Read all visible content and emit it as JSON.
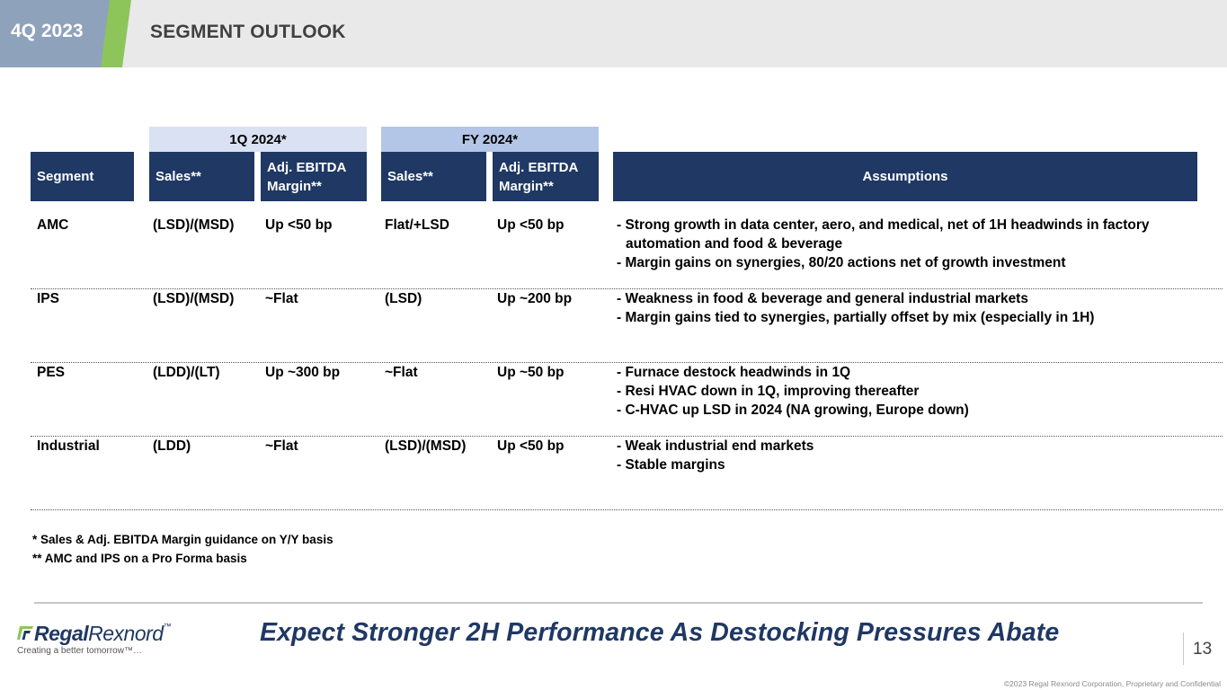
{
  "header": {
    "quarter": "4Q 2023",
    "title": "SEGMENT OUTLOOK"
  },
  "table": {
    "group_headers": [
      "1Q 2024*",
      "FY 2024*"
    ],
    "columns": {
      "segment": "Segment",
      "q1_sales": "Sales**",
      "q1_margin_line1": "Adj. EBITDA",
      "q1_margin_line2": "Margin**",
      "fy_sales": "Sales**",
      "fy_margin_line1": "Adj. EBITDA",
      "fy_margin_line2": "Margin**",
      "assumptions": "Assumptions"
    },
    "rows": [
      {
        "segment": "AMC",
        "q1_sales": "(LSD)/(MSD)",
        "q1_margin": "Up <50 bp",
        "fy_sales": "Flat/+LSD",
        "fy_margin": "Up <50 bp",
        "assumptions": [
          "- Strong growth in data center, aero, and medical, net of 1H headwinds in factory",
          "automation and food & beverage",
          "- Margin gains on synergies, 80/20 actions net of growth investment"
        ]
      },
      {
        "segment": "IPS",
        "q1_sales": "(LSD)/(MSD)",
        "q1_margin": "~Flat",
        "fy_sales": "(LSD)",
        "fy_margin": "Up ~200 bp",
        "assumptions": [
          "- Weakness in food & beverage and general industrial markets",
          "- Margin gains tied to synergies, partially offset by mix (especially in 1H)"
        ]
      },
      {
        "segment": "PES",
        "q1_sales": "(LDD)/(LT)",
        "q1_margin": "Up ~300 bp",
        "fy_sales": "~Flat",
        "fy_margin": "Up ~50 bp",
        "assumptions": [
          "- Furnace destock headwinds in 1Q",
          "- Resi HVAC down in 1Q, improving thereafter",
          "- C-HVAC up LSD in 2024 (NA growing, Europe down)"
        ]
      },
      {
        "segment": "Industrial",
        "q1_sales": "(LDD)",
        "q1_margin": "~Flat",
        "fy_sales": "(LSD)/(MSD)",
        "fy_margin": "Up <50 bp",
        "assumptions": [
          "- Weak industrial end markets",
          "- Stable margins"
        ]
      }
    ]
  },
  "footnotes": [
    "* Sales & Adj. EBITDA Margin guidance on Y/Y basis",
    "** AMC and IPS on a Pro Forma basis"
  ],
  "footer": {
    "logo_regal": "Regal",
    "logo_rexnord": "Rexnord",
    "logo_tm": "™",
    "tagline": "Creating a better tomorrow™…",
    "banner": "Expect Stronger 2H Performance As Destocking Pressures Abate",
    "page_number": "13",
    "copyright": "©2023 Regal Rexnord Corporation, Proprietary and Confidential"
  },
  "colors": {
    "navy": "#1f3864",
    "header_tab": "#8ea2bc",
    "accent_green": "#8dc55b",
    "group_1q": "#d9e1f2",
    "group_fy": "#b4c6e7"
  }
}
